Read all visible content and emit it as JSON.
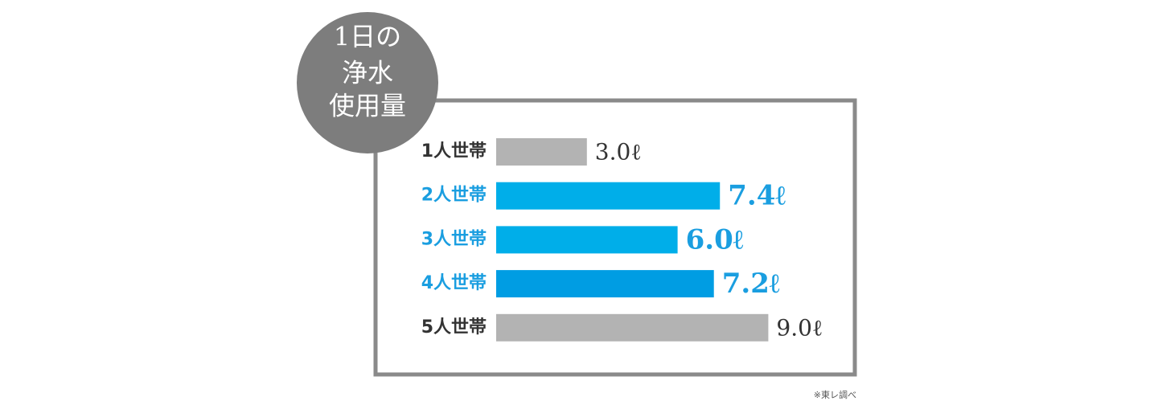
{
  "chart_data": {
    "type": "bar",
    "orientation": "horizontal",
    "title": [
      "1日の",
      "浄水",
      "使用量"
    ],
    "categories": [
      "1人世帯",
      "2人世帯",
      "3人世帯",
      "4人世帯",
      "5人世帯"
    ],
    "values": [
      3.0,
      7.4,
      6.0,
      7.2,
      9.0
    ],
    "value_labels": [
      "3.0ℓ",
      "7.4ℓ",
      "6.0ℓ",
      "7.2ℓ",
      "9.0ℓ"
    ],
    "colors": [
      "#b3b3b3",
      "#00aee9",
      "#00aee9",
      "#009de3",
      "#b3b3b3"
    ],
    "label_colors": [
      "#333333",
      "#1a9ee0",
      "#1a9ee0",
      "#1a9ee0",
      "#333333"
    ],
    "note": "※東レ調べ"
  }
}
